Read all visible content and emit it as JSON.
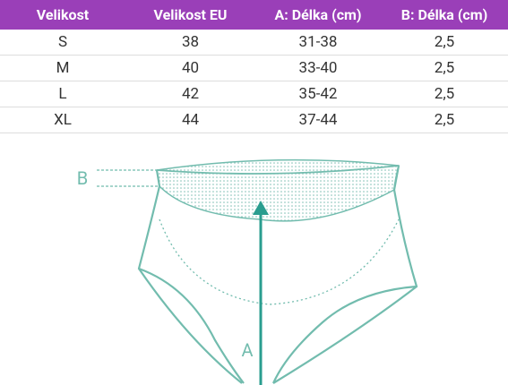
{
  "table": {
    "header": [
      "Velikost",
      "Velikost EU",
      "A: Délka (cm)",
      "B: Délka (cm)"
    ],
    "rows": [
      [
        "S",
        "38",
        "31-38",
        "2,5"
      ],
      [
        "M",
        "40",
        "33-40",
        "2,5"
      ],
      [
        "L",
        "42",
        "35-42",
        "2,5"
      ],
      [
        "XL",
        "44",
        "37-44",
        "2,5"
      ]
    ]
  },
  "diagram": {
    "labels": [
      "B",
      "A"
    ]
  }
}
